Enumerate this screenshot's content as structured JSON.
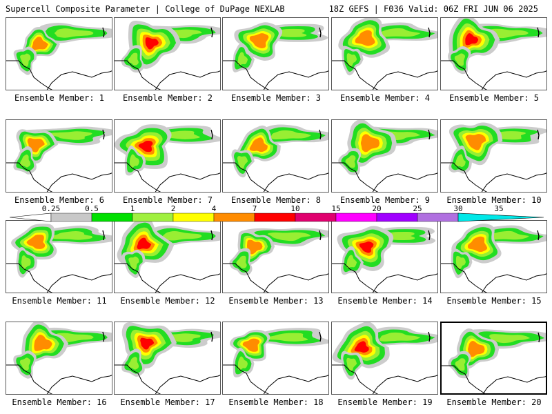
{
  "header": {
    "left": "Supercell Composite Parameter | College of DuPage NEXLAB",
    "right": "18Z GEFS | F036 Valid: 06Z FRI JUN 06 2025"
  },
  "panels": [
    {
      "label": "Ensemble Member: 1"
    },
    {
      "label": "Ensemble Member: 2"
    },
    {
      "label": "Ensemble Member: 3"
    },
    {
      "label": "Ensemble Member: 4"
    },
    {
      "label": "Ensemble Member: 5"
    },
    {
      "label": "Ensemble Member: 6"
    },
    {
      "label": "Ensemble Member: 7"
    },
    {
      "label": "Ensemble Member: 8"
    },
    {
      "label": "Ensemble Member: 9"
    },
    {
      "label": "Ensemble Member: 10"
    },
    {
      "label": "Ensemble Member: 11"
    },
    {
      "label": "Ensemble Member: 12"
    },
    {
      "label": "Ensemble Member: 13"
    },
    {
      "label": "Ensemble Member: 14"
    },
    {
      "label": "Ensemble Member: 15"
    },
    {
      "label": "Ensemble Member: 16"
    },
    {
      "label": "Ensemble Member: 17"
    },
    {
      "label": "Ensemble Member: 18"
    },
    {
      "label": "Ensemble Member: 19"
    },
    {
      "label": "Ensemble Member: 20",
      "selected": true
    }
  ],
  "colorbar": {
    "ticks": [
      "0.25",
      "0.5",
      "1",
      "2",
      "4",
      "7",
      "10",
      "15",
      "20",
      "25",
      "30",
      "35"
    ],
    "colors": [
      "#ffffff",
      "#c8c8c8",
      "#00e000",
      "#a0f040",
      "#ffff00",
      "#ff8c00",
      "#ff0000",
      "#e0006e",
      "#ff00ff",
      "#a000ff",
      "#b070e0",
      "#00e8e8"
    ]
  },
  "contour_colors": {
    "gray": "#cccccc",
    "green": "#22dd22",
    "lightgreen": "#99ee33",
    "yellow": "#ffff00",
    "orange": "#ff8c00",
    "red": "#ff0000"
  }
}
